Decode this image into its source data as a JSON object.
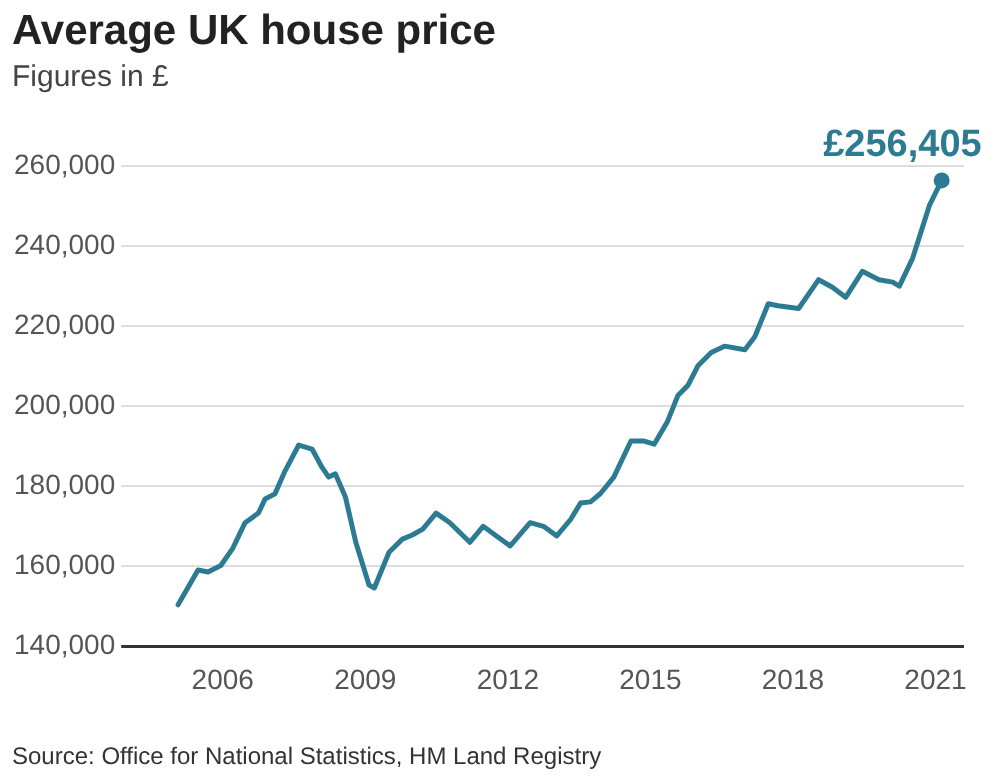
{
  "chart_data": {
    "type": "line",
    "title": "Average UK house price",
    "subtitle": "Figures in £",
    "x": [
      2005.06,
      2005.48,
      2005.69,
      2005.96,
      2006.21,
      2006.47,
      2006.75,
      2006.89,
      2007.1,
      2007.31,
      2007.6,
      2007.88,
      2008.09,
      2008.23,
      2008.37,
      2008.58,
      2008.8,
      2009.08,
      2009.19,
      2009.5,
      2009.78,
      2010.0,
      2010.21,
      2010.49,
      2010.78,
      2011.2,
      2011.48,
      2011.76,
      2012.05,
      2012.47,
      2012.75,
      2013.03,
      2013.32,
      2013.53,
      2013.74,
      2013.95,
      2014.23,
      2014.59,
      2014.87,
      2015.08,
      2015.36,
      2015.58,
      2015.79,
      2016.0,
      2016.28,
      2016.56,
      2016.99,
      2017.2,
      2017.48,
      2017.69,
      2018.12,
      2018.54,
      2018.83,
      2019.11,
      2019.46,
      2019.81,
      2020.1,
      2020.24,
      2020.52,
      2020.87,
      2021.13
    ],
    "series": [
      {
        "color": "#2c7b93",
        "values": [
          150400,
          159100,
          158600,
          160200,
          164500,
          170900,
          173300,
          176800,
          178100,
          183800,
          190300,
          189300,
          184700,
          182300,
          183100,
          177400,
          166000,
          155300,
          154600,
          163500,
          166800,
          167900,
          169300,
          173300,
          170900,
          166000,
          170000,
          167600,
          165100,
          170900,
          170000,
          167600,
          171700,
          175800,
          176100,
          178200,
          182300,
          191300,
          191300,
          190500,
          196200,
          202700,
          205200,
          210100,
          213400,
          215000,
          214100,
          217400,
          225600,
          225100,
          224400,
          231600,
          229700,
          227200,
          233700,
          231600,
          231000,
          230000,
          237000,
          250100,
          256405
        ]
      }
    ],
    "xlim": [
      2004.2,
      2021.6
    ],
    "xticks": [
      2006,
      2009,
      2012,
      2015,
      2018,
      2021
    ],
    "ylim": [
      140000,
      260000
    ],
    "yticks": [
      {
        "value": 140000,
        "label": "140,000"
      },
      {
        "value": 160000,
        "label": "160,000"
      },
      {
        "value": 180000,
        "label": "180,000"
      },
      {
        "value": 200000,
        "label": "200,000"
      },
      {
        "value": 220000,
        "label": "220,000"
      },
      {
        "value": 240000,
        "label": "240,000"
      },
      {
        "value": 260000,
        "label": "260,000"
      }
    ],
    "grid": "y",
    "legend": false,
    "line_style": "solid",
    "marker": "none",
    "annotations": [
      {
        "text": "£256,405",
        "x": 2021.13,
        "y": 256405
      },
      "Source: Office for National Statistics, HM Land Registry"
    ]
  }
}
